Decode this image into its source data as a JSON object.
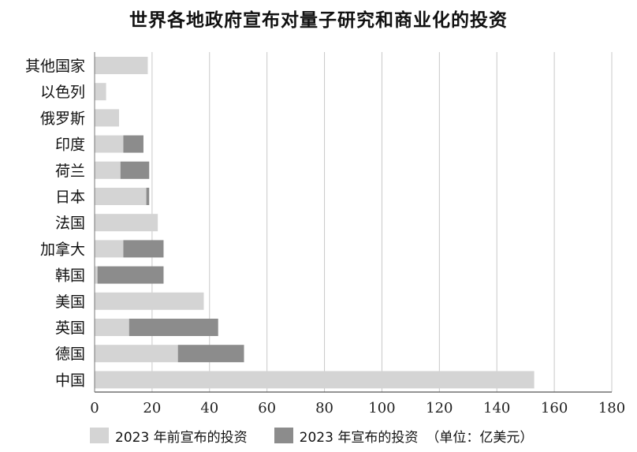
{
  "chart_data": {
    "type": "bar",
    "orientation": "horizontal",
    "stacked": true,
    "title": "世界各地政府宣布对量子研究和商业化的投资",
    "unit_note": "（单位：亿美元）",
    "categories": [
      "其他国家",
      "以色列",
      "俄罗斯",
      "印度",
      "荷兰",
      "日本",
      "法国",
      "加拿大",
      "韩国",
      "美国",
      "英国",
      "德国",
      "中国"
    ],
    "series": [
      {
        "name": "2023 年前宣布的投资",
        "color": "#d4d4d4",
        "values": [
          18.5,
          4,
          8.5,
          10,
          9,
          18,
          22,
          10,
          1,
          38,
          12,
          29,
          153
        ]
      },
      {
        "name": "2023 年宣布的投资",
        "color": "#8c8c8c",
        "values": [
          0,
          0,
          0,
          7,
          10,
          1,
          0,
          14,
          23,
          0,
          31,
          23,
          0
        ]
      }
    ],
    "xlim": [
      0,
      180
    ],
    "xticks": [
      "0",
      "20",
      "40",
      "60",
      "80",
      "100",
      "120",
      "140",
      "160",
      "180"
    ],
    "grid": "vertical",
    "legend_position": "bottom"
  }
}
